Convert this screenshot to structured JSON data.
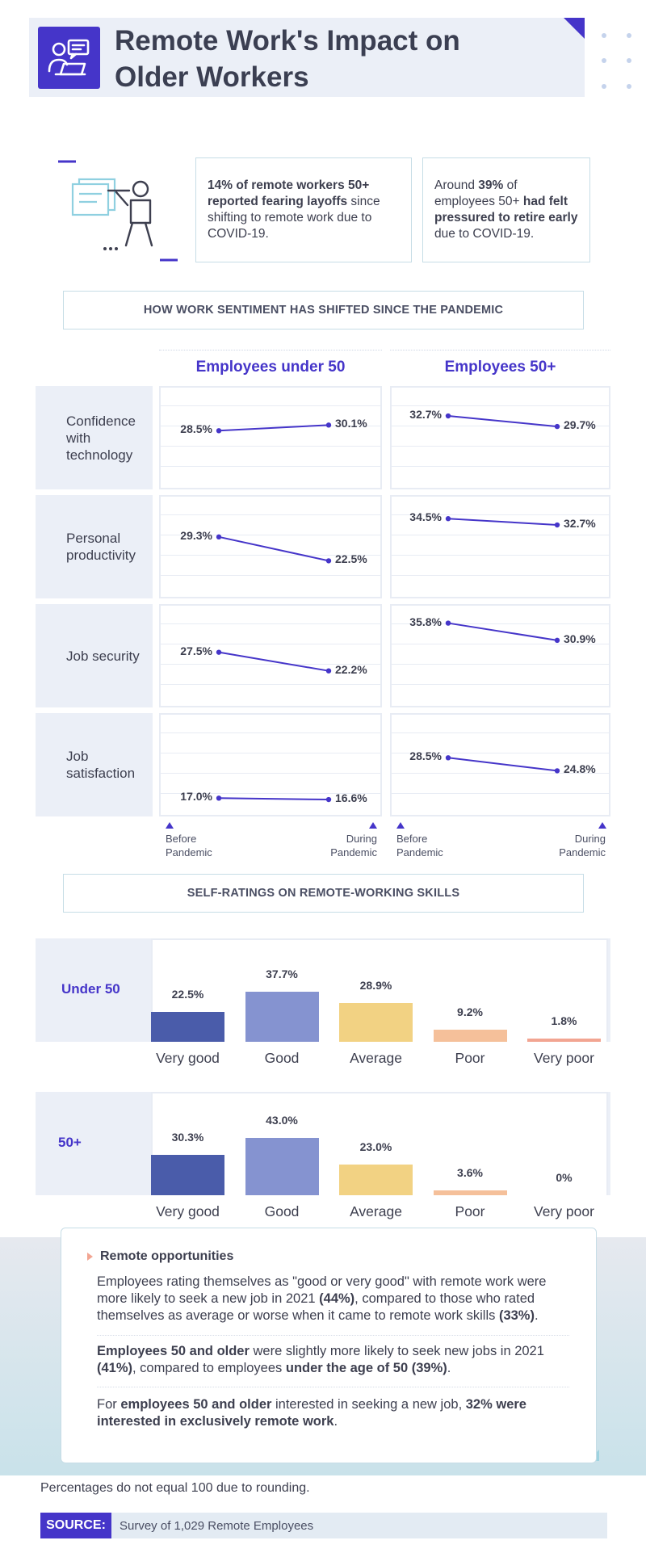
{
  "header": {
    "title_line1": "Remote Work's Impact on",
    "title_line2": "Older Workers",
    "icon": "remote-worker-icon",
    "accent": "#4535c9"
  },
  "stats": {
    "illustration_icon": "worker-leaving-office-icon",
    "box1": {
      "bold": "14% of remote workers 50+ reported fearing layoffs",
      "rest": " since shifting to remote work due to COVID-19."
    },
    "box2": {
      "pre": "Around ",
      "b1": "39%",
      "mid": " of employees 50+ ",
      "b2": "had felt pressured to retire early",
      "post": " due to COVID-19."
    }
  },
  "sentiment": {
    "section_title": "HOW WORK SENTIMENT HAS SHIFTED SINCE THE PANDEMIC",
    "col_under50": "Employees under 50",
    "col_50plus": "Employees 50+",
    "axis_before": "Before\nPandemic",
    "axis_during": "During\nPandemic",
    "line_color": "#4535c9"
  },
  "chart_data": [
    {
      "type": "line",
      "title": "Employees under 50",
      "x": [
        "Before Pandemic",
        "During Pandemic"
      ],
      "series": [
        {
          "name": "Confidence with technology",
          "values": [
            28.5,
            30.1
          ]
        },
        {
          "name": "Personal productivity",
          "values": [
            29.3,
            22.5
          ]
        },
        {
          "name": "Job security",
          "values": [
            27.5,
            22.2
          ]
        },
        {
          "name": "Job satisfaction",
          "values": [
            17.0,
            16.6
          ]
        }
      ],
      "labels": [
        [
          "28.5%",
          "30.1%"
        ],
        [
          "29.3%",
          "22.5%"
        ],
        [
          "27.5%",
          "22.2%"
        ],
        [
          "17.0%",
          "16.6%"
        ]
      ]
    },
    {
      "type": "line",
      "title": "Employees 50+",
      "x": [
        "Before Pandemic",
        "During Pandemic"
      ],
      "series": [
        {
          "name": "Confidence with technology",
          "values": [
            32.7,
            29.7
          ]
        },
        {
          "name": "Personal productivity",
          "values": [
            34.5,
            32.7
          ]
        },
        {
          "name": "Job security",
          "values": [
            35.8,
            30.9
          ]
        },
        {
          "name": "Job satisfaction",
          "values": [
            28.5,
            24.8
          ]
        }
      ],
      "labels": [
        [
          "32.7%",
          "29.7%"
        ],
        [
          "34.5%",
          "32.7%"
        ],
        [
          "35.8%",
          "30.9%"
        ],
        [
          "28.5%",
          "24.8%"
        ]
      ]
    },
    {
      "type": "bar",
      "title": "SELF-RATINGS ON REMOTE-WORKING SKILLS",
      "categories": [
        "Very good",
        "Good",
        "Average",
        "Poor",
        "Very poor"
      ],
      "series": [
        {
          "name": "Under 50",
          "values": [
            22.5,
            37.7,
            28.9,
            9.2,
            1.8
          ],
          "labels": [
            "22.5%",
            "37.7%",
            "28.9%",
            "9.2%",
            "1.8%"
          ]
        },
        {
          "name": "50+",
          "values": [
            30.3,
            43.0,
            23.0,
            3.6,
            0
          ],
          "labels": [
            "30.3%",
            "43.0%",
            "23.0%",
            "3.6%",
            "0%"
          ]
        }
      ],
      "bar_colors": [
        "#4a5caa",
        "#8593d0",
        "#f2d283",
        "#f5c09a",
        "#f2a592"
      ]
    }
  ],
  "rows": [
    "Confidence\nwith\ntechnology",
    "Personal\nproductivity",
    "Job security",
    "Job\nsatisfaction"
  ],
  "skills": {
    "section_title": "SELF-RATINGS ON REMOTE-WORKING SKILLS"
  },
  "callout": {
    "title": "Remote opportunities",
    "p1": {
      "t1": "Employees rating themselves as \"good or very good\" with remote work were more likely to seek a new job in 2021 ",
      "b1": "(44%)",
      "t2": ", compared to those who rated themselves as average or worse when it came to remote work skills ",
      "b2": "(33%)",
      "t3": "."
    },
    "p2": {
      "b1": "Employees 50 and older",
      "t1": " were slightly more likely to seek new jobs in 2021 ",
      "b2": "(41%)",
      "t2": ", compared to employees ",
      "b3": "under the age of 50 (39%)",
      "t3": "."
    },
    "p3": {
      "t1": "For ",
      "b1": "employees 50 and older",
      "t2": " interested in seeking a new job, ",
      "b2": "32% were interested in exclusively remote work",
      "t3": "."
    }
  },
  "footnote": "Percentages do not equal 100 due to rounding.",
  "source": {
    "tag": "SOURCE:",
    "text": "Survey of 1,029 Remote Employees"
  }
}
